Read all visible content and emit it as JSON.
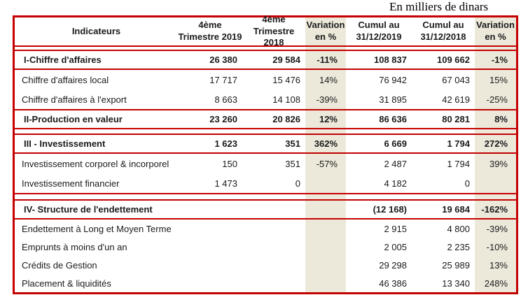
{
  "caption": "En milliers de dinars",
  "colors": {
    "border_red": "#c40000",
    "variation_column_bg": "#ece9db",
    "text": "#1a1a1a"
  },
  "header": {
    "indicateurs": "Indicateurs",
    "q4_2019": "4ème\nTrimestre 2019",
    "q4_2018": "4ème\nTrimestre 2018",
    "var_trimestre": "Variation\nen %",
    "cumul_2019": "Cumul au\n31/12/2019",
    "cumul_2018": "Cumul au\n31/12/2018",
    "var_cumul": "Variation\nen %"
  },
  "rows": [
    {
      "label": "I-Chiffre d'affaires",
      "q4_2019": "26 380",
      "q4_2018": "29 584",
      "var_q4": "-11%",
      "cumul_2019": "108 837",
      "cumul_2018": "109 662",
      "var_cumul": "-1%",
      "style": "section"
    },
    {
      "label": "Chiffre d'affaires local",
      "q4_2019": "17 717",
      "q4_2018": "15 476",
      "var_q4": "14%",
      "cumul_2019": "76 942",
      "cumul_2018": "67 043",
      "var_cumul": "15%",
      "style": "detail"
    },
    {
      "label": "Chiffre d'affaires à l'export",
      "q4_2019": "8 663",
      "q4_2018": "14 108",
      "var_q4": "-39%",
      "cumul_2019": "31 895",
      "cumul_2018": "42 619",
      "var_cumul": "-25%",
      "style": "detail"
    },
    {
      "label": "II-Production en valeur",
      "q4_2019": "23 260",
      "q4_2018": "20 826",
      "var_q4": "12%",
      "cumul_2019": "86 636",
      "cumul_2018": "80 281",
      "var_cumul": "8%",
      "style": "section"
    },
    {
      "label": "III - Investissement",
      "q4_2019": "1 623",
      "q4_2018": "351",
      "var_q4": "362%",
      "cumul_2019": "6 669",
      "cumul_2018": "1 794",
      "var_cumul": "272%",
      "style": "section"
    },
    {
      "label": "Investissement corporel & incorporel",
      "q4_2019": "150",
      "q4_2018": "351",
      "var_q4": "-57%",
      "cumul_2019": "2 487",
      "cumul_2018": "1 794",
      "var_cumul": "39%",
      "style": "detail"
    },
    {
      "label": "Investissement financier",
      "q4_2019": "1 473",
      "q4_2018": "0",
      "var_q4": "",
      "cumul_2019": "4 182",
      "cumul_2018": "0",
      "var_cumul": "",
      "style": "detail"
    },
    {
      "label": "IV- Structure de l'endettement",
      "q4_2019": "",
      "q4_2018": "",
      "var_q4": "",
      "cumul_2019": "(12 168)",
      "cumul_2018": "19 684",
      "var_cumul": "-162%",
      "style": "section"
    },
    {
      "label": "Endettement à Long et Moyen Terme",
      "q4_2019": "",
      "q4_2018": "",
      "var_q4": "",
      "cumul_2019": "2 915",
      "cumul_2018": "4 800",
      "var_cumul": "-39%",
      "style": "detail"
    },
    {
      "label": "Emprunts à moins d'un an",
      "q4_2019": "",
      "q4_2018": "",
      "var_q4": "",
      "cumul_2019": "2 005",
      "cumul_2018": "2 235",
      "var_cumul": "-10%",
      "style": "detail"
    },
    {
      "label": "Crédits de Gestion",
      "q4_2019": "",
      "q4_2018": "",
      "var_q4": "",
      "cumul_2019": "29 298",
      "cumul_2018": "25 989",
      "var_cumul": "13%",
      "style": "detail"
    },
    {
      "label": "Placement & liquidités",
      "q4_2019": "",
      "q4_2018": "",
      "var_q4": "",
      "cumul_2019": "46 386",
      "cumul_2018": "13 340",
      "var_cumul": "248%",
      "style": "detail"
    }
  ]
}
